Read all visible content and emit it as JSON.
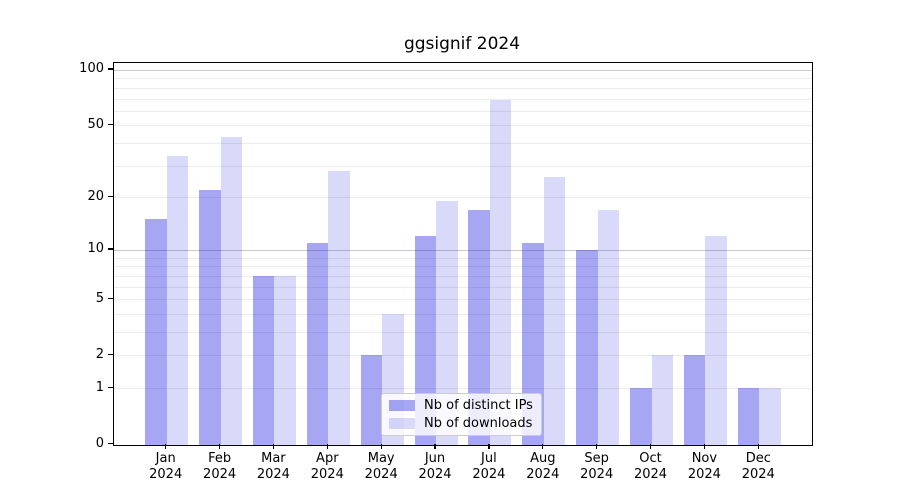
{
  "chart_data": {
    "type": "bar",
    "title": "ggsignif 2024",
    "categories": [
      "Jan 2024",
      "Feb 2024",
      "Mar 2024",
      "Apr 2024",
      "May 2024",
      "Jun 2024",
      "Jul 2024",
      "Aug 2024",
      "Sep 2024",
      "Oct 2024",
      "Nov 2024",
      "Dec 2024"
    ],
    "x_months": [
      "Jan",
      "Feb",
      "Mar",
      "Apr",
      "May",
      "Jun",
      "Jul",
      "Aug",
      "Sep",
      "Oct",
      "Nov",
      "Dec"
    ],
    "x_year": "2024",
    "series": [
      {
        "name": "Nb of distinct IPs",
        "color": "#a6a6f3",
        "color_rgba": "rgba(0,0,220,0.35)",
        "values": [
          15,
          22,
          7,
          11,
          2,
          12,
          17,
          11,
          10,
          1,
          2,
          1
        ]
      },
      {
        "name": "Nb of downloads",
        "color": "#d9d9fa",
        "color_rgba": "rgba(0,0,220,0.15)",
        "values": [
          34,
          43,
          7,
          28,
          4,
          19,
          69,
          26,
          17,
          2,
          12,
          1
        ]
      }
    ],
    "yscale": "log1p",
    "y_ticks": [
      0,
      1,
      2,
      5,
      10,
      20,
      50,
      100
    ],
    "grid_minor": [
      1,
      2,
      3,
      4,
      5,
      6,
      7,
      8,
      9,
      20,
      30,
      40,
      50,
      60,
      70,
      80,
      90
    ],
    "grid_major": [
      10,
      100
    ],
    "ylim": [
      0,
      110
    ],
    "xlabel": "",
    "ylabel": "",
    "grid": "on",
    "legend_position": "lower-center-inside"
  }
}
